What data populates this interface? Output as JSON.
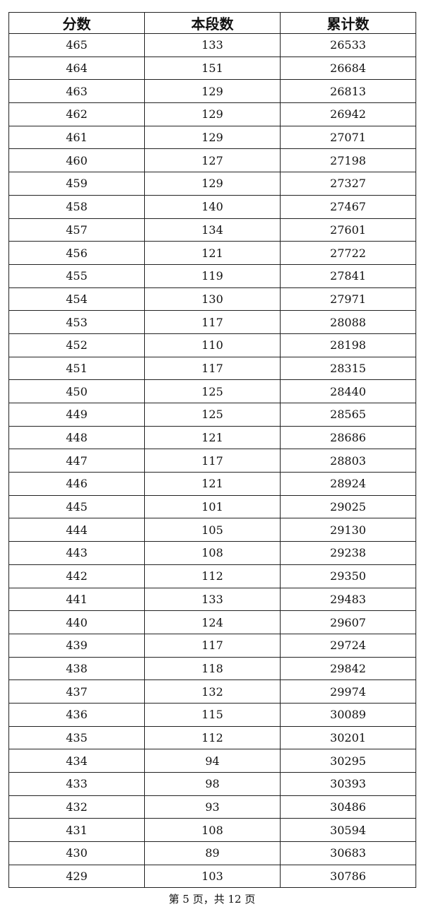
{
  "table": {
    "headers": [
      "分数",
      "本段数",
      "累计数"
    ],
    "rows": [
      [
        "465",
        "133",
        "26533"
      ],
      [
        "464",
        "151",
        "26684"
      ],
      [
        "463",
        "129",
        "26813"
      ],
      [
        "462",
        "129",
        "26942"
      ],
      [
        "461",
        "129",
        "27071"
      ],
      [
        "460",
        "127",
        "27198"
      ],
      [
        "459",
        "129",
        "27327"
      ],
      [
        "458",
        "140",
        "27467"
      ],
      [
        "457",
        "134",
        "27601"
      ],
      [
        "456",
        "121",
        "27722"
      ],
      [
        "455",
        "119",
        "27841"
      ],
      [
        "454",
        "130",
        "27971"
      ],
      [
        "453",
        "117",
        "28088"
      ],
      [
        "452",
        "110",
        "28198"
      ],
      [
        "451",
        "117",
        "28315"
      ],
      [
        "450",
        "125",
        "28440"
      ],
      [
        "449",
        "125",
        "28565"
      ],
      [
        "448",
        "121",
        "28686"
      ],
      [
        "447",
        "117",
        "28803"
      ],
      [
        "446",
        "121",
        "28924"
      ],
      [
        "445",
        "101",
        "29025"
      ],
      [
        "444",
        "105",
        "29130"
      ],
      [
        "443",
        "108",
        "29238"
      ],
      [
        "442",
        "112",
        "29350"
      ],
      [
        "441",
        "133",
        "29483"
      ],
      [
        "440",
        "124",
        "29607"
      ],
      [
        "439",
        "117",
        "29724"
      ],
      [
        "438",
        "118",
        "29842"
      ],
      [
        "437",
        "132",
        "29974"
      ],
      [
        "436",
        "115",
        "30089"
      ],
      [
        "435",
        "112",
        "30201"
      ],
      [
        "434",
        "94",
        "30295"
      ],
      [
        "433",
        "98",
        "30393"
      ],
      [
        "432",
        "93",
        "30486"
      ],
      [
        "431",
        "108",
        "30594"
      ],
      [
        "430",
        "89",
        "30683"
      ],
      [
        "429",
        "103",
        "30786"
      ]
    ]
  },
  "footer": {
    "page_label": "第 5 页，共 12 页"
  }
}
